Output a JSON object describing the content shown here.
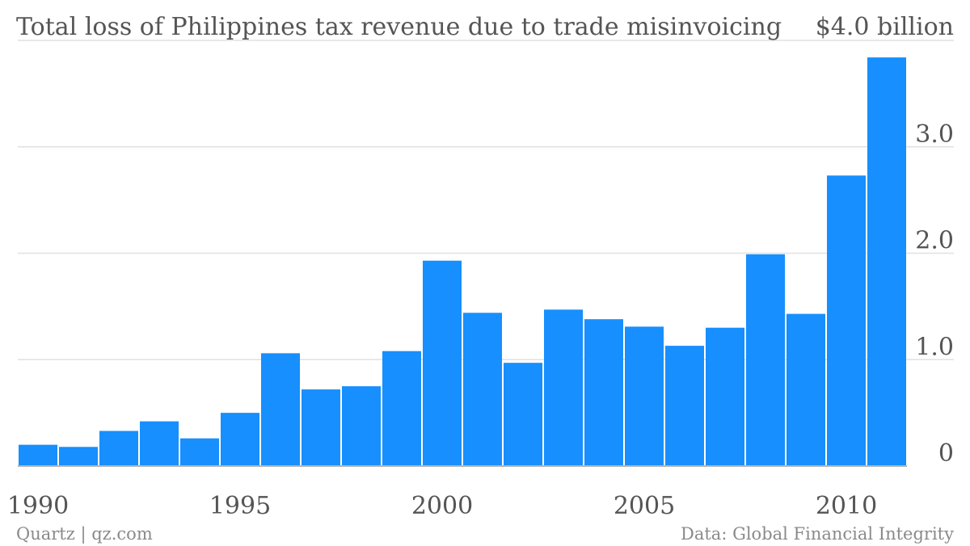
{
  "chart_data": {
    "type": "bar",
    "title": "Total loss of Philippines tax revenue due to trade misinvoicing",
    "y_unit_label": "$4.0 billion",
    "categories": [
      "1990",
      "1991",
      "1992",
      "1993",
      "1994",
      "1995",
      "1996",
      "1997",
      "1998",
      "1999",
      "2000",
      "2001",
      "2002",
      "2003",
      "2004",
      "2005",
      "2006",
      "2007",
      "2008",
      "2009",
      "2010",
      "2011"
    ],
    "values": [
      0.2,
      0.18,
      0.33,
      0.42,
      0.26,
      0.5,
      1.06,
      0.72,
      0.75,
      1.08,
      1.93,
      1.44,
      0.97,
      1.47,
      1.38,
      1.31,
      1.13,
      1.3,
      1.99,
      1.43,
      2.73,
      3.84
    ],
    "ylim": [
      0,
      4.0
    ],
    "y_ticks": [
      0,
      1.0,
      2.0,
      3.0,
      4.0
    ],
    "y_tick_labels": [
      "0",
      "1.0",
      "2.0",
      "3.0",
      "$4.0 billion"
    ],
    "x_ticks": [
      "1990",
      "1995",
      "2000",
      "2005",
      "2010"
    ],
    "xlabel": "",
    "ylabel": "",
    "grid": true,
    "color": "#178ffe"
  },
  "footer": {
    "source_left": "Quartz | qz.com",
    "source_right": "Data: Global Financial Integrity"
  }
}
